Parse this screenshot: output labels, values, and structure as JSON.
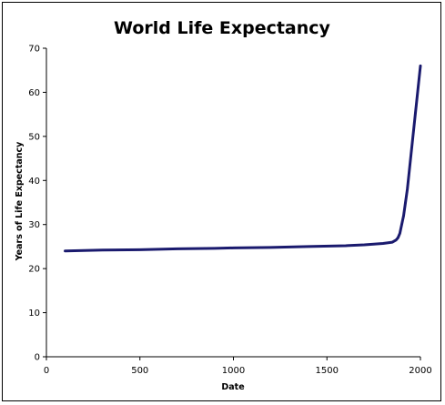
{
  "chart_data": {
    "type": "line",
    "title": "World Life Expectancy",
    "xlabel": "Date",
    "ylabel": "Years of Life Expectancy",
    "xlim": [
      0,
      2000
    ],
    "ylim": [
      0,
      70
    ],
    "xticks": [
      0,
      500,
      1000,
      1500,
      2000
    ],
    "yticks": [
      0,
      10,
      20,
      30,
      40,
      50,
      60,
      70
    ],
    "grid": false,
    "legend": "none",
    "series": [
      {
        "color": "#1a1a6e",
        "x": [
          100,
          300,
          500,
          700,
          900,
          1000,
          1200,
          1400,
          1600,
          1700,
          1800,
          1850,
          1870,
          1880,
          1890,
          1900,
          1910,
          1920,
          1930,
          1940,
          1950,
          1960,
          1970,
          1980,
          1990,
          2000
        ],
        "y": [
          24,
          24.2,
          24.3,
          24.5,
          24.6,
          24.7,
          24.8,
          25,
          25.2,
          25.4,
          25.7,
          26,
          26.5,
          27,
          28,
          30,
          32,
          35,
          38,
          42,
          46,
          50,
          54,
          58,
          62,
          66
        ]
      }
    ]
  }
}
